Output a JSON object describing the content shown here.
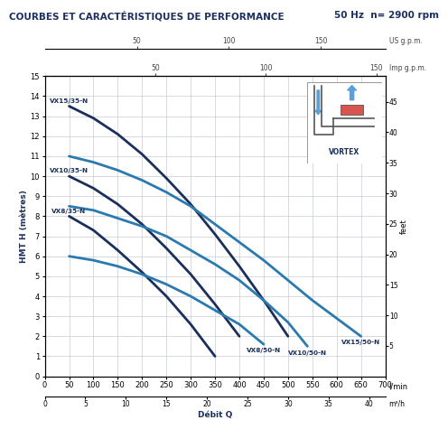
{
  "chart_data": {
    "type": "line",
    "title": "COURBES ET CARACTÉRISTIQUES DE PERFORMANCE",
    "subtitle": "50 Hz  n= 2900 rpm",
    "x_label": "Débit Q",
    "x_unit": "l/min",
    "y_label": "HMT H (mètres)",
    "inset_label": "VORTEX",
    "xlim": [
      0,
      700
    ],
    "xticks": [
      0,
      50,
      100,
      150,
      200,
      250,
      300,
      350,
      400,
      450,
      500,
      550,
      600,
      650,
      700
    ],
    "ylim": [
      0,
      15
    ],
    "yticks": [
      0,
      1,
      2,
      3,
      4,
      5,
      6,
      7,
      8,
      9,
      10,
      11,
      12,
      13,
      14,
      15
    ],
    "grid": true,
    "secondary_axes": [
      {
        "side": "top",
        "label": "US g.p.m.",
        "lim": [
          0,
          184.9
        ],
        "ticks": [
          50,
          100,
          150
        ]
      },
      {
        "side": "top",
        "label": "Imp g.p.m.",
        "lim": [
          0,
          154
        ],
        "ticks": [
          50,
          100,
          150
        ]
      },
      {
        "side": "bottom",
        "label": "m³/h",
        "lim": [
          0,
          42
        ],
        "ticks": [
          0,
          5,
          10,
          15,
          20,
          25,
          30,
          35,
          40
        ]
      },
      {
        "side": "right",
        "label": "feet",
        "lim": [
          0,
          49.2
        ],
        "ticks": [
          5,
          10,
          15,
          20,
          25,
          30,
          35,
          40,
          45
        ]
      }
    ],
    "series": [
      {
        "name": "VX15/35-N",
        "color": "#1b2f5c",
        "x": [
          50,
          100,
          150,
          200,
          250,
          300,
          350,
          400,
          450,
          500
        ],
        "values": [
          13.5,
          12.9,
          12.1,
          11.1,
          9.9,
          8.6,
          7.1,
          5.5,
          3.8,
          2.0
        ]
      },
      {
        "name": "VX10/35-N",
        "color": "#1b2f5c",
        "x": [
          50,
          100,
          150,
          200,
          250,
          300,
          350,
          400
        ],
        "values": [
          10.0,
          9.4,
          8.6,
          7.6,
          6.4,
          5.1,
          3.6,
          2.0
        ]
      },
      {
        "name": "VX8/35-N",
        "color": "#1b2f5c",
        "x": [
          50,
          100,
          150,
          200,
          250,
          300,
          350
        ],
        "values": [
          8.0,
          7.3,
          6.3,
          5.2,
          4.0,
          2.6,
          1.0
        ]
      },
      {
        "name": "VX15/50-N",
        "color": "#2a7ab0",
        "x": [
          50,
          100,
          150,
          200,
          250,
          300,
          350,
          400,
          450,
          500,
          550,
          600,
          650
        ],
        "values": [
          11.0,
          10.7,
          10.3,
          9.8,
          9.2,
          8.5,
          7.6,
          6.7,
          5.8,
          4.8,
          3.8,
          2.9,
          2.0
        ]
      },
      {
        "name": "VX10/50-N",
        "color": "#2a7ab0",
        "x": [
          50,
          100,
          150,
          200,
          250,
          300,
          350,
          400,
          450,
          500,
          540
        ],
        "values": [
          8.5,
          8.3,
          7.9,
          7.5,
          7.0,
          6.3,
          5.6,
          4.8,
          3.8,
          2.7,
          1.5
        ]
      },
      {
        "name": "VX8/50-N",
        "color": "#2a7ab0",
        "x": [
          50,
          100,
          150,
          200,
          250,
          300,
          350,
          400,
          450
        ],
        "values": [
          6.0,
          5.8,
          5.5,
          5.1,
          4.6,
          4.0,
          3.3,
          2.6,
          1.6
        ]
      }
    ]
  }
}
